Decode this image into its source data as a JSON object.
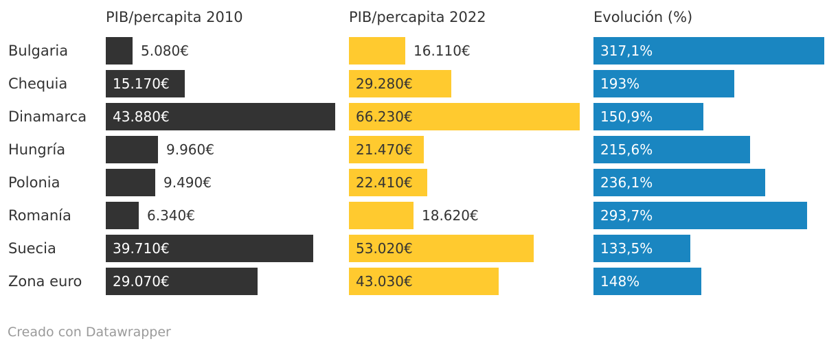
{
  "chart_data": {
    "type": "table",
    "categories": [
      "Bulgaria",
      "Chequia",
      "Dinamarca",
      "Hungría",
      "Polonia",
      "Romanía",
      "Suecia",
      "Zona euro"
    ],
    "series": [
      {
        "name": "PIB/percapita 2010",
        "color": "#333333",
        "values": [
          5080,
          15170,
          43880,
          9960,
          9490,
          6340,
          39710,
          29070
        ],
        "labels": [
          "5.080€",
          "15.170€",
          "43.880€",
          "9.960€",
          "9.490€",
          "6.340€",
          "39.710€",
          "29.070€"
        ]
      },
      {
        "name": "PIB/percapita 2022",
        "color": "#ffca2f",
        "values": [
          16110,
          29280,
          66230,
          21470,
          22410,
          18620,
          53020,
          43030
        ],
        "labels": [
          "16.110€",
          "29.280€",
          "66.230€",
          "21.470€",
          "22.410€",
          "18.620€",
          "53.020€",
          "43.030€"
        ]
      },
      {
        "name": "Evolución (%)",
        "color": "#1a86c1",
        "values": [
          317.1,
          193,
          150.9,
          215.6,
          236.1,
          293.7,
          133.5,
          148
        ],
        "labels": [
          "317,1%",
          "193%",
          "150,9%",
          "215,6%",
          "236,1%",
          "293,7%",
          "133,5%",
          "148%"
        ]
      }
    ],
    "grid": false,
    "legend": "none"
  },
  "credit": "Creado con Datawrapper"
}
